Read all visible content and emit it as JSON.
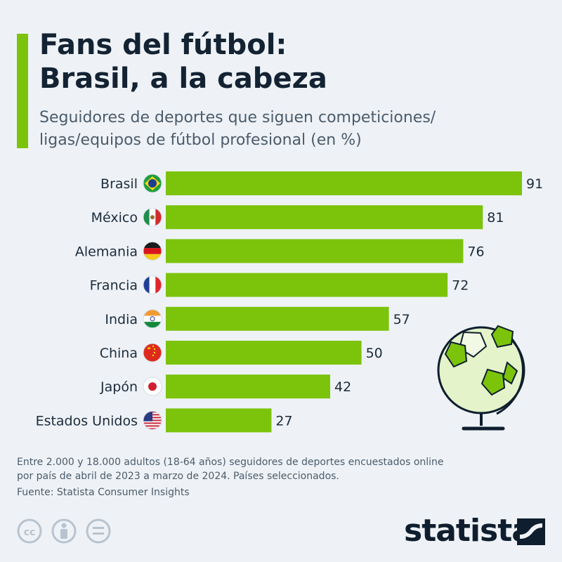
{
  "header": {
    "title_line1": "Fans del fútbol:",
    "title_line2": "Brasil, a la cabeza",
    "subtitle_line1": "Seguidores de deportes que siguen competiciones/",
    "subtitle_line2": "ligas/equipos de fútbol profesional (en %)"
  },
  "chart_data": {
    "type": "bar",
    "orientation": "horizontal",
    "categories": [
      "Brasil",
      "México",
      "Alemania",
      "Francia",
      "India",
      "China",
      "Japón",
      "Estados Unidos"
    ],
    "values": [
      91,
      81,
      76,
      72,
      57,
      50,
      42,
      27
    ],
    "flags": [
      "brazil-flag",
      "mexico-flag",
      "germany-flag",
      "france-flag",
      "india-flag",
      "china-flag",
      "japan-flag",
      "usa-flag"
    ],
    "unit": "%",
    "bar_color": "#7cc30c",
    "xlim": [
      0,
      91
    ],
    "grid": false,
    "legend": "none"
  },
  "footer": {
    "note_line1": "Entre 2.000 y 18.000 adultos (18-64 años) seguidores de deportes encuestados online",
    "note_line2": "por país de abril de 2023 a marzo de 2024. Países seleccionados.",
    "source": "Fuente: Statista Consumer Insights",
    "brand": "statista",
    "license_icons": [
      "creative-commons-icon",
      "attribution-icon",
      "no-derivatives-icon"
    ]
  },
  "colors": {
    "accent": "#7cc30c",
    "background": "#eef2f6",
    "title": "#132333",
    "text": "#4b5b6b"
  }
}
